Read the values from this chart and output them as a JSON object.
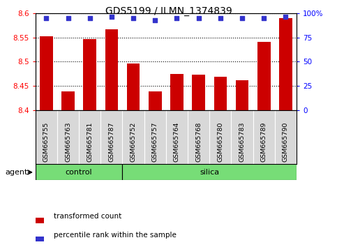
{
  "title": "GDS5199 / ILMN_1374839",
  "samples": [
    "GSM665755",
    "GSM665763",
    "GSM665781",
    "GSM665787",
    "GSM665752",
    "GSM665757",
    "GSM665764",
    "GSM665768",
    "GSM665780",
    "GSM665783",
    "GSM665789",
    "GSM665790"
  ],
  "bar_values": [
    8.553,
    8.439,
    8.547,
    8.568,
    8.497,
    8.439,
    8.475,
    8.473,
    8.469,
    8.462,
    8.542,
    8.591
  ],
  "percentile_values": [
    95,
    95,
    95,
    97,
    95,
    93,
    95,
    95,
    95,
    95,
    95,
    97
  ],
  "bar_color": "#cc0000",
  "dot_color": "#3333cc",
  "ylim_left": [
    8.4,
    8.6
  ],
  "ylim_right": [
    0,
    100
  ],
  "yticks_left": [
    8.4,
    8.45,
    8.5,
    8.55,
    8.6
  ],
  "yticks_right": [
    0,
    25,
    50,
    75,
    100
  ],
  "ytick_labels_right": [
    "0",
    "25",
    "50",
    "75",
    "100%"
  ],
  "plot_bg_color": "#ffffff",
  "tick_area_color": "#d8d8d8",
  "group_bar_color": "#77dd77",
  "control_samples": [
    "GSM665755",
    "GSM665763",
    "GSM665781",
    "GSM665787"
  ],
  "silica_samples": [
    "GSM665752",
    "GSM665757",
    "GSM665764",
    "GSM665768",
    "GSM665780",
    "GSM665783",
    "GSM665789",
    "GSM665790"
  ],
  "agent_label": "agent",
  "control_label": "control",
  "silica_label": "silica",
  "legend_bar_label": "transformed count",
  "legend_dot_label": "percentile rank within the sample",
  "bar_width": 0.6,
  "n_control": 4,
  "n_silica": 8
}
